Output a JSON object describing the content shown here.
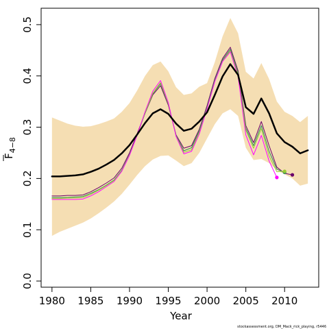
{
  "chart_data": {
    "type": "line",
    "xlabel": "Year",
    "ylabel": {
      "main": "F",
      "subscript": "4−8"
    },
    "xlim": [
      1978.6,
      2014.4
    ],
    "ylim": [
      -0.012,
      0.532
    ],
    "xticks": [
      1980,
      1985,
      1990,
      1995,
      2000,
      2005,
      2010
    ],
    "yticks": [
      0.0,
      0.1,
      0.2,
      0.3,
      0.4,
      0.5
    ],
    "ytick_labels": [
      "0.0",
      "0.1",
      "0.2",
      "0.3",
      "0.4",
      "0.5"
    ],
    "grid": false,
    "credit": "stockassessment.org, DM_Mack_rick_playing, r5446",
    "colors": {
      "band": "#f5deb3",
      "estimate": "#000000",
      "retro1": "#6b006b",
      "retro2": "#2e8b57",
      "retro3": "#9acd32",
      "retro4": "#ff00ff"
    },
    "confidence_band": {
      "x": [
        1980,
        1981,
        1982,
        1983,
        1984,
        1985,
        1986,
        1987,
        1988,
        1989,
        1990,
        1991,
        1992,
        1993,
        1994,
        1995,
        1996,
        1997,
        1998,
        1999,
        2000,
        2001,
        2002,
        2003,
        2004,
        2005,
        2006,
        2007,
        2008,
        2009,
        2010,
        2011,
        2012,
        2013
      ],
      "lower": [
        0.088,
        0.096,
        0.102,
        0.108,
        0.114,
        0.122,
        0.132,
        0.143,
        0.155,
        0.17,
        0.188,
        0.207,
        0.224,
        0.237,
        0.244,
        0.245,
        0.235,
        0.224,
        0.23,
        0.25,
        0.278,
        0.306,
        0.327,
        0.335,
        0.322,
        0.26,
        0.236,
        0.238,
        0.23,
        0.216,
        0.208,
        0.2,
        0.186,
        0.19
      ],
      "upper": [
        0.319,
        0.313,
        0.307,
        0.303,
        0.301,
        0.302,
        0.306,
        0.311,
        0.317,
        0.33,
        0.347,
        0.372,
        0.4,
        0.421,
        0.428,
        0.409,
        0.378,
        0.363,
        0.366,
        0.379,
        0.386,
        0.427,
        0.477,
        0.513,
        0.483,
        0.408,
        0.395,
        0.425,
        0.394,
        0.35,
        0.33,
        0.322,
        0.31,
        0.322
      ]
    },
    "series": [
      {
        "role": "estimate",
        "x": [
          1980,
          1981,
          1982,
          1983,
          1984,
          1985,
          1986,
          1987,
          1988,
          1989,
          1990,
          1991,
          1992,
          1993,
          1994,
          1995,
          1996,
          1997,
          1998,
          1999,
          2000,
          2001,
          2002,
          2003,
          2004,
          2005,
          2006,
          2007,
          2008,
          2009,
          2010,
          2011,
          2012,
          2013
        ],
        "values": [
          0.204,
          0.204,
          0.205,
          0.206,
          0.208,
          0.213,
          0.219,
          0.227,
          0.236,
          0.249,
          0.265,
          0.286,
          0.308,
          0.327,
          0.335,
          0.326,
          0.307,
          0.293,
          0.297,
          0.311,
          0.329,
          0.363,
          0.399,
          0.423,
          0.402,
          0.339,
          0.326,
          0.356,
          0.327,
          0.288,
          0.271,
          0.262,
          0.249,
          0.255
        ],
        "color": "#000000",
        "width": 2.5
      },
      {
        "role": "retro1",
        "x": [
          1980,
          1981,
          1982,
          1983,
          1984,
          1985,
          1986,
          1987,
          1988,
          1989,
          1990,
          1991,
          1992,
          1993,
          1994,
          1995,
          1996,
          1997,
          1998,
          1999,
          2000,
          2001,
          2002,
          2003,
          2004,
          2005,
          2006,
          2007,
          2008,
          2009,
          2010,
          2011
        ],
        "values": [
          0.166,
          0.166,
          0.167,
          0.167,
          0.168,
          0.174,
          0.182,
          0.191,
          0.201,
          0.22,
          0.25,
          0.288,
          0.327,
          0.363,
          0.381,
          0.343,
          0.285,
          0.259,
          0.264,
          0.296,
          0.342,
          0.395,
          0.434,
          0.456,
          0.41,
          0.303,
          0.27,
          0.311,
          0.264,
          0.222,
          0.21,
          0.207
        ],
        "color": "#6b006b",
        "width": 1
      },
      {
        "role": "retro2",
        "x": [
          1980,
          1981,
          1982,
          1983,
          1984,
          1985,
          1986,
          1987,
          1988,
          1989,
          1990,
          1991,
          1992,
          1993,
          1994,
          1995,
          1996,
          1997,
          1998,
          1999,
          2000,
          2001,
          2002,
          2003,
          2004,
          2005,
          2006,
          2007,
          2008,
          2009,
          2010
        ],
        "values": [
          0.163,
          0.163,
          0.163,
          0.164,
          0.165,
          0.171,
          0.178,
          0.187,
          0.197,
          0.216,
          0.247,
          0.285,
          0.327,
          0.365,
          0.385,
          0.345,
          0.284,
          0.254,
          0.26,
          0.293,
          0.339,
          0.392,
          0.431,
          0.452,
          0.406,
          0.298,
          0.264,
          0.303,
          0.253,
          0.218,
          0.212
        ],
        "color": "#2e8b57",
        "width": 1
      },
      {
        "role": "retro3",
        "x": [
          1980,
          1981,
          1982,
          1983,
          1984,
          1985,
          1986,
          1987,
          1988,
          1989,
          1990,
          1991,
          1992,
          1993,
          1994,
          1995,
          1996,
          1997,
          1998,
          1999,
          2000,
          2001,
          2002,
          2003,
          2004,
          2005,
          2006,
          2007,
          2008,
          2009,
          2010
        ],
        "values": [
          0.161,
          0.161,
          0.162,
          0.162,
          0.163,
          0.169,
          0.177,
          0.186,
          0.196,
          0.215,
          0.246,
          0.285,
          0.328,
          0.366,
          0.387,
          0.346,
          0.283,
          0.251,
          0.256,
          0.29,
          0.337,
          0.39,
          0.429,
          0.449,
          0.403,
          0.294,
          0.259,
          0.297,
          0.244,
          0.213,
          0.214
        ],
        "color": "#9acd32",
        "width": 1
      },
      {
        "role": "retro4",
        "x": [
          1980,
          1981,
          1982,
          1983,
          1984,
          1985,
          1986,
          1987,
          1988,
          1989,
          1990,
          1991,
          1992,
          1993,
          1994,
          1995,
          1996,
          1997,
          1998,
          1999,
          2000,
          2001,
          2002,
          2003,
          2004,
          2005,
          2006,
          2007,
          2008,
          2009
        ],
        "values": [
          0.159,
          0.159,
          0.159,
          0.159,
          0.16,
          0.166,
          0.174,
          0.184,
          0.194,
          0.214,
          0.245,
          0.285,
          0.33,
          0.37,
          0.391,
          0.348,
          0.282,
          0.248,
          0.253,
          0.287,
          0.336,
          0.389,
          0.428,
          0.447,
          0.399,
          0.285,
          0.246,
          0.284,
          0.234,
          0.202
        ],
        "color": "#ff00ff",
        "width": 1
      }
    ],
    "end_points": [
      {
        "x": 2011,
        "y": 0.207,
        "color": "#6b006b"
      },
      {
        "x": 2010,
        "y": 0.212,
        "color": "#2e8b57"
      },
      {
        "x": 2010,
        "y": 0.214,
        "color": "#9acd32"
      },
      {
        "x": 2009,
        "y": 0.202,
        "color": "#ff00ff"
      }
    ]
  }
}
